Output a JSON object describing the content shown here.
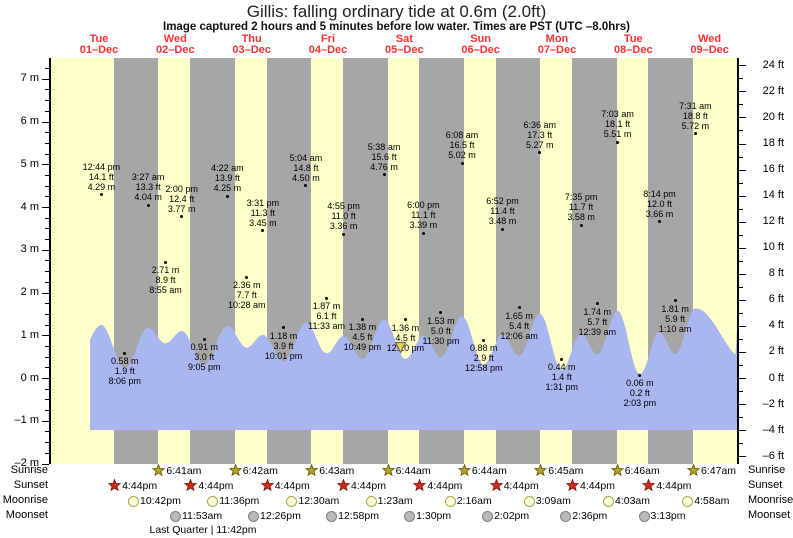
{
  "chart_data": {
    "type": "area",
    "title": "Gillis: falling  ordinary tide at 0.6m (2.0ft)",
    "subtitle": "Image captured 2 hours and 5 minutes before low water. Times are PST (UTC –8.0hrs)",
    "ylabel_left": "meters",
    "ylabel_right": "feet",
    "ylim_m": [
      -2.1,
      7.5
    ],
    "y_ticks_m": [
      7,
      6,
      5,
      4,
      3,
      2,
      1,
      0,
      -1,
      -2
    ],
    "y_ticks_ft": [
      24,
      22,
      20,
      18,
      16,
      14,
      12,
      10,
      8,
      6,
      4,
      2,
      0,
      -2,
      -4,
      -6
    ],
    "grid": false,
    "legend": false,
    "days": [
      {
        "weekday": "Tue",
        "date": "01–Dec"
      },
      {
        "weekday": "Wed",
        "date": "02–Dec"
      },
      {
        "weekday": "Thu",
        "date": "03–Dec"
      },
      {
        "weekday": "Fri",
        "date": "04–Dec"
      },
      {
        "weekday": "Sat",
        "date": "05–Dec"
      },
      {
        "weekday": "Sun",
        "date": "06–Dec"
      },
      {
        "weekday": "Mon",
        "date": "07–Dec"
      },
      {
        "weekday": "Tue",
        "date": "08–Dec"
      },
      {
        "weekday": "Wed",
        "date": "09–Dec"
      }
    ],
    "tide_events": [
      {
        "day": 0,
        "time": "12:44 pm",
        "height_m": 4.29,
        "height_ft": 14.1,
        "type": "high"
      },
      {
        "day": 0,
        "time": "8:06 pm",
        "height_m": 0.58,
        "height_ft": 1.9,
        "type": "low"
      },
      {
        "day": 1,
        "time": "3:27 am",
        "height_m": 4.04,
        "height_ft": 13.3,
        "type": "high"
      },
      {
        "day": 1,
        "time": "8:55 am",
        "height_m": 2.71,
        "height_ft": 8.9,
        "type": "low"
      },
      {
        "day": 1,
        "time": "2:00 pm",
        "height_m": 3.77,
        "height_ft": 12.4,
        "type": "high"
      },
      {
        "day": 1,
        "time": "9:05 pm",
        "height_m": 0.91,
        "height_ft": 3.0,
        "type": "low"
      },
      {
        "day": 2,
        "time": "4:22 am",
        "height_m": 4.25,
        "height_ft": 13.9,
        "type": "high"
      },
      {
        "day": 2,
        "time": "10:28 am",
        "height_m": 2.36,
        "height_ft": 7.7,
        "type": "low"
      },
      {
        "day": 2,
        "time": "3:31 pm",
        "height_m": 3.45,
        "height_ft": 11.3,
        "type": "high"
      },
      {
        "day": 2,
        "time": "10:01 pm",
        "height_m": 1.18,
        "height_ft": 3.9,
        "type": "low"
      },
      {
        "day": 3,
        "time": "5:04 am",
        "height_m": 4.5,
        "height_ft": 14.8,
        "type": "high"
      },
      {
        "day": 3,
        "time": "11:33 am",
        "height_m": 1.87,
        "height_ft": 6.1,
        "type": "low"
      },
      {
        "day": 3,
        "time": "4:55 pm",
        "height_m": 3.36,
        "height_ft": 11.0,
        "type": "high"
      },
      {
        "day": 3,
        "time": "10:49 pm",
        "height_m": 1.38,
        "height_ft": 4.5,
        "type": "low"
      },
      {
        "day": 4,
        "time": "5:38 am",
        "height_m": 4.76,
        "height_ft": 15.6,
        "type": "high"
      },
      {
        "day": 4,
        "time": "12:20 pm",
        "height_m": 1.36,
        "height_ft": 4.5,
        "type": "low",
        "current": true
      },
      {
        "day": 4,
        "time": "6:00 pm",
        "height_m": 3.39,
        "height_ft": 11.1,
        "type": "high"
      },
      {
        "day": 4,
        "time": "11:30 pm",
        "height_m": 1.53,
        "height_ft": 5.0,
        "type": "low"
      },
      {
        "day": 5,
        "time": "6:08 am",
        "height_m": 5.02,
        "height_ft": 16.5,
        "type": "high"
      },
      {
        "day": 5,
        "time": "12:58 pm",
        "height_m": 0.88,
        "height_ft": 2.9,
        "type": "low"
      },
      {
        "day": 5,
        "time": "6:52 pm",
        "height_m": 3.48,
        "height_ft": 11.4,
        "type": "high"
      },
      {
        "day": 6,
        "time": "12:06 am",
        "height_m": 1.65,
        "height_ft": 5.4,
        "type": "low"
      },
      {
        "day": 6,
        "time": "6:36 am",
        "height_m": 5.27,
        "height_ft": 17.3,
        "type": "high"
      },
      {
        "day": 6,
        "time": "1:31 pm",
        "height_m": 0.44,
        "height_ft": 1.4,
        "type": "low"
      },
      {
        "day": 6,
        "time": "7:35 pm",
        "height_m": 3.58,
        "height_ft": 11.7,
        "type": "high"
      },
      {
        "day": 7,
        "time": "12:39 am",
        "height_m": 1.74,
        "height_ft": 5.7,
        "type": "low"
      },
      {
        "day": 7,
        "time": "7:03 am",
        "height_m": 5.51,
        "height_ft": 18.1,
        "type": "high"
      },
      {
        "day": 7,
        "time": "2:03 pm",
        "height_m": 0.06,
        "height_ft": 0.2,
        "type": "low"
      },
      {
        "day": 7,
        "time": "8:14 pm",
        "height_m": 3.66,
        "height_ft": 12.0,
        "type": "high"
      },
      {
        "day": 8,
        "time": "1:10 am",
        "height_m": 1.81,
        "height_ft": 5.9,
        "type": "low"
      },
      {
        "day": 8,
        "time": "7:31 am",
        "height_m": 5.72,
        "height_ft": 18.8,
        "type": "high"
      }
    ],
    "sunrise": [
      {
        "day": 1,
        "time": "6:41am"
      },
      {
        "day": 2,
        "time": "6:42am"
      },
      {
        "day": 3,
        "time": "6:43am"
      },
      {
        "day": 4,
        "time": "6:44am"
      },
      {
        "day": 5,
        "time": "6:44am"
      },
      {
        "day": 6,
        "time": "6:45am"
      },
      {
        "day": 7,
        "time": "6:46am"
      },
      {
        "day": 8,
        "time": "6:47am"
      }
    ],
    "sunset": [
      {
        "day": 0,
        "time": "4:44pm"
      },
      {
        "day": 1,
        "time": "4:44pm"
      },
      {
        "day": 2,
        "time": "4:44pm"
      },
      {
        "day": 3,
        "time": "4:44pm"
      },
      {
        "day": 4,
        "time": "4:44pm"
      },
      {
        "day": 5,
        "time": "4:44pm"
      },
      {
        "day": 6,
        "time": "4:44pm"
      },
      {
        "day": 7,
        "time": "4:44pm"
      }
    ],
    "moonrise": [
      {
        "day": 0,
        "time": "10:42pm"
      },
      {
        "day": 1,
        "time": "11:36pm"
      },
      {
        "day": 3,
        "time": "12:30am"
      },
      {
        "day": 4,
        "time": "1:23am"
      },
      {
        "day": 5,
        "time": "2:16am"
      },
      {
        "day": 6,
        "time": "3:09am"
      },
      {
        "day": 7,
        "time": "4:03am"
      },
      {
        "day": 8,
        "time": "4:58am"
      }
    ],
    "moonset": [
      {
        "day": 1,
        "time": "11:53am"
      },
      {
        "day": 2,
        "time": "12:26pm"
      },
      {
        "day": 3,
        "time": "12:58pm"
      },
      {
        "day": 4,
        "time": "1:30pm"
      },
      {
        "day": 5,
        "time": "2:02pm"
      },
      {
        "day": 6,
        "time": "2:36pm"
      },
      {
        "day": 7,
        "time": "3:13pm"
      }
    ],
    "moon_phase": "Last Quarter | 11:42pm"
  },
  "labels": {
    "sunrise": "Sunrise",
    "sunset": "Sunset",
    "moonrise": "Moonrise",
    "moonset": "Moonset",
    "m_unit": "m",
    "ft_unit": "ft"
  },
  "colors": {
    "day_band": "#ffffc9",
    "night_band": "#a6a6a6",
    "water": "#a9b6ef",
    "date_red": "#ff3030",
    "sunrise_star": "#b3a52a",
    "sunset_star": "#cc2d16",
    "moonrise_fill": "#ffffdc",
    "moonrise_stroke": "#a8a448",
    "moonset_fill": "#b9b9b9",
    "moonset_stroke": "#808080",
    "marker_triangle": "#ecd944",
    "text": "#000000"
  }
}
